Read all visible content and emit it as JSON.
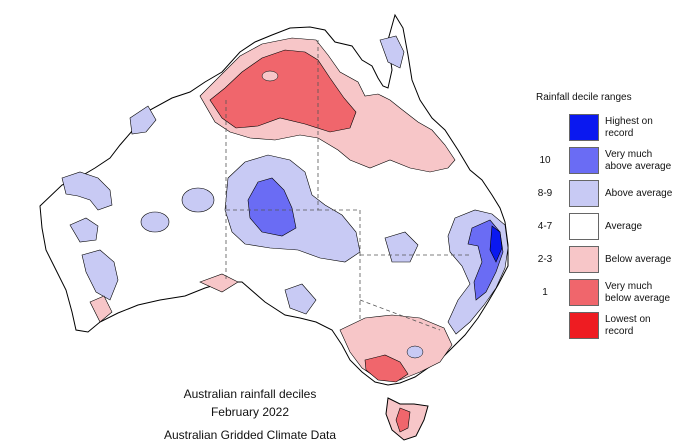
{
  "map": {
    "title_line1": "Australian rainfall deciles",
    "title_line2": "February 2022",
    "title_line3": "Australian Gridded Climate Data"
  },
  "legend": {
    "title": "Rainfall decile ranges",
    "rows": [
      {
        "range": "",
        "label": "Highest on record",
        "color": "#0a18f0"
      },
      {
        "range": "10",
        "label": "Very much above average",
        "color": "#6a6cf4"
      },
      {
        "range": "8-9",
        "label": "Above average",
        "color": "#c8caf4"
      },
      {
        "range": "4-7",
        "label": "Average",
        "color": "#ffffff"
      },
      {
        "range": "2-3",
        "label": "Below average",
        "color": "#f7c6c8"
      },
      {
        "range": "1",
        "label": "Very much below average",
        "color": "#f0666c"
      },
      {
        "range": "",
        "label": "Lowest on record",
        "color": "#ee1c22"
      }
    ]
  }
}
